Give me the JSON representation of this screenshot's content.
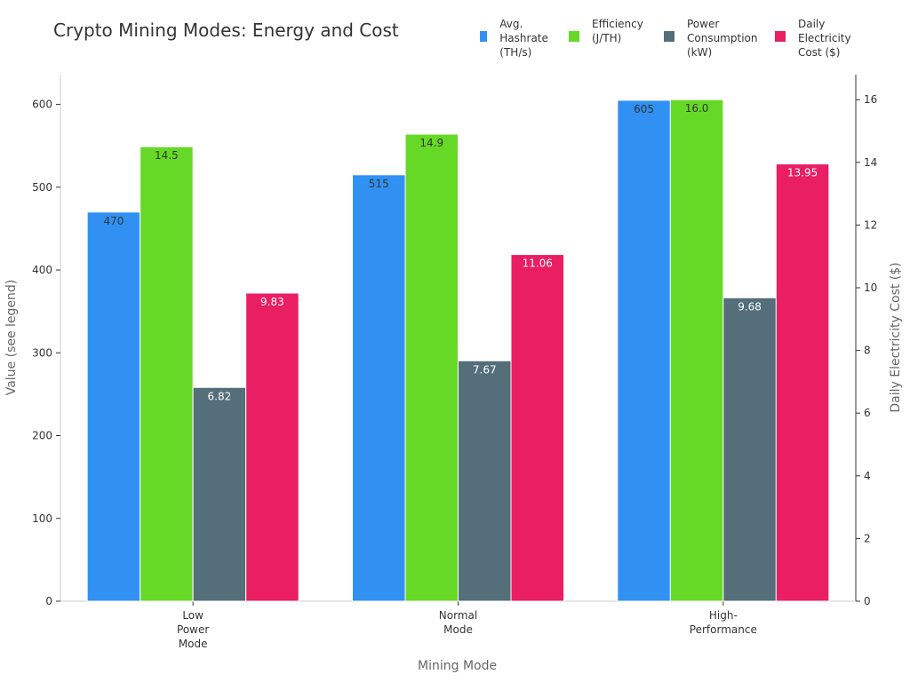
{
  "chart_data": {
    "type": "bar",
    "title": "Crypto Mining Modes: Energy and Cost",
    "xlabel": "Mining Mode",
    "ylabel": "Value (see legend)",
    "y2label": "Daily Electricity Cost ($)",
    "categories": [
      "Low\nPower\nMode",
      "Normal\nMode",
      "High-\nPerformance"
    ],
    "ylim": [
      0,
      636
    ],
    "y2lim": [
      0,
      16.8
    ],
    "yticks": [
      0,
      100,
      200,
      300,
      400,
      500,
      600
    ],
    "y2ticks": [
      0,
      2,
      4,
      6,
      8,
      10,
      12,
      14,
      16
    ],
    "legend_position": "top-right",
    "grid": false,
    "series": [
      {
        "name": "Avg. Hashrate\n(TH/s)",
        "axis": "left",
        "color": "#3091f2",
        "label_color": "#333333",
        "values": [
          470,
          515,
          605
        ],
        "labels": [
          "470",
          "515",
          "605"
        ]
      },
      {
        "name": "Efficiency\n(J/TH)",
        "axis": "right",
        "color": "#66d926",
        "label_color": "#333333",
        "values": [
          14.5,
          14.9,
          16.0
        ],
        "labels": [
          "14.5",
          "14.9",
          "16.0"
        ]
      },
      {
        "name": "Power\nConsumption\n(kW)",
        "axis": "right",
        "color": "#546e7a",
        "label_color": "#ffffff",
        "values": [
          6.82,
          7.67,
          9.68
        ],
        "labels": [
          "6.82",
          "7.67",
          "9.68"
        ]
      },
      {
        "name": "Daily\nElectricity\nCost ($)",
        "axis": "right",
        "color": "#e91e63",
        "label_color": "#ffffff",
        "values": [
          9.83,
          11.06,
          13.95
        ],
        "labels": [
          "9.83",
          "11.06",
          "13.95"
        ]
      }
    ]
  }
}
